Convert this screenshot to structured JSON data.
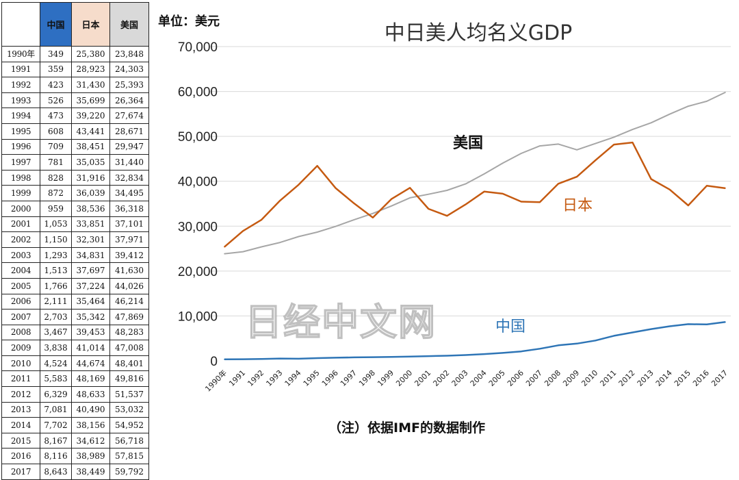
{
  "table": {
    "headers": [
      "",
      "中国",
      "日本",
      "美国"
    ],
    "rows": [
      [
        "1990年",
        "349",
        "25,380",
        "23,848"
      ],
      [
        "1991",
        "359",
        "28,923",
        "24,303"
      ],
      [
        "1992",
        "423",
        "31,430",
        "25,393"
      ],
      [
        "1993",
        "526",
        "35,699",
        "26,364"
      ],
      [
        "1994",
        "473",
        "39,220",
        "27,674"
      ],
      [
        "1995",
        "608",
        "43,441",
        "28,671"
      ],
      [
        "1996",
        "709",
        "38,451",
        "29,947"
      ],
      [
        "1997",
        "781",
        "35,035",
        "31,440"
      ],
      [
        "1998",
        "828",
        "31,916",
        "32,834"
      ],
      [
        "1999",
        "872",
        "36,039",
        "34,495"
      ],
      [
        "2000",
        "959",
        "38,536",
        "36,318"
      ],
      [
        "2001",
        "1,053",
        "33,851",
        "37,101"
      ],
      [
        "2002",
        "1,150",
        "32,301",
        "37,971"
      ],
      [
        "2003",
        "1,293",
        "34,831",
        "39,412"
      ],
      [
        "2004",
        "1,513",
        "37,697",
        "41,630"
      ],
      [
        "2005",
        "1,766",
        "37,224",
        "44,026"
      ],
      [
        "2006",
        "2,111",
        "35,464",
        "46,214"
      ],
      [
        "2007",
        "2,703",
        "35,342",
        "47,869"
      ],
      [
        "2008",
        "3,467",
        "39,453",
        "48,283"
      ],
      [
        "2009",
        "3,838",
        "41,014",
        "47,008"
      ],
      [
        "2010",
        "4,524",
        "44,674",
        "48,401"
      ],
      [
        "2011",
        "5,583",
        "48,169",
        "49,816"
      ],
      [
        "2012",
        "6,329",
        "48,633",
        "51,537"
      ],
      [
        "2013",
        "7,081",
        "40,490",
        "53,032"
      ],
      [
        "2014",
        "7,702",
        "38,156",
        "54,952"
      ],
      [
        "2015",
        "8,167",
        "34,612",
        "56,718"
      ],
      [
        "2016",
        "8,116",
        "38,989",
        "57,815"
      ],
      [
        "2017",
        "8,643",
        "38,449",
        "59,792"
      ]
    ]
  },
  "unit_label": "单位：美元",
  "note": "（注）依据IMF的数据制作",
  "watermark": "日经中文网",
  "colors": {
    "china": "#2e75b6",
    "japan": "#c55a11",
    "usa": "#a6a6a6",
    "china_header": "#2e6fc2",
    "japan_header": "#f6dccb",
    "usa_header": "#d9d9d9"
  },
  "chart_data": {
    "type": "line",
    "title": "中日美人均名义GDP",
    "xlabel": "",
    "ylabel": "",
    "ylim": [
      0,
      70000
    ],
    "yticks": [
      0,
      10000,
      20000,
      30000,
      40000,
      50000,
      60000,
      70000
    ],
    "ytick_labels": [
      "0",
      "10,000",
      "20,000",
      "30,000",
      "40,000",
      "50,000",
      "60,000",
      "70,000"
    ],
    "grid": true,
    "categories": [
      "1990年",
      "1991",
      "1992",
      "1993",
      "1994",
      "1995",
      "1996",
      "1997",
      "1998",
      "1999",
      "2000",
      "2001",
      "2002",
      "2003",
      "2004",
      "2005",
      "2006",
      "2007",
      "2008",
      "2009",
      "2010",
      "2011",
      "2012",
      "2013",
      "2014",
      "2015",
      "2016",
      "2017"
    ],
    "series": [
      {
        "name": "美国",
        "color": "#a6a6a6",
        "values": [
          23848,
          24303,
          25393,
          26364,
          27674,
          28671,
          29947,
          31440,
          32834,
          34495,
          36318,
          37101,
          37971,
          39412,
          41630,
          44026,
          46214,
          47869,
          48283,
          47008,
          48401,
          49816,
          51537,
          53032,
          54952,
          56718,
          57815,
          59792
        ]
      },
      {
        "name": "日本",
        "color": "#c55a11",
        "values": [
          25380,
          28923,
          31430,
          35699,
          39220,
          43441,
          38451,
          35035,
          31916,
          36039,
          38536,
          33851,
          32301,
          34831,
          37697,
          37224,
          35464,
          35342,
          39453,
          41014,
          44674,
          48169,
          48633,
          40490,
          38156,
          34612,
          38989,
          38449
        ]
      },
      {
        "name": "中国",
        "color": "#2e75b6",
        "values": [
          349,
          359,
          423,
          526,
          473,
          608,
          709,
          781,
          828,
          872,
          959,
          1053,
          1150,
          1293,
          1513,
          1766,
          2111,
          2703,
          3467,
          3838,
          4524,
          5583,
          6329,
          7081,
          7702,
          8167,
          8116,
          8643
        ]
      }
    ]
  }
}
